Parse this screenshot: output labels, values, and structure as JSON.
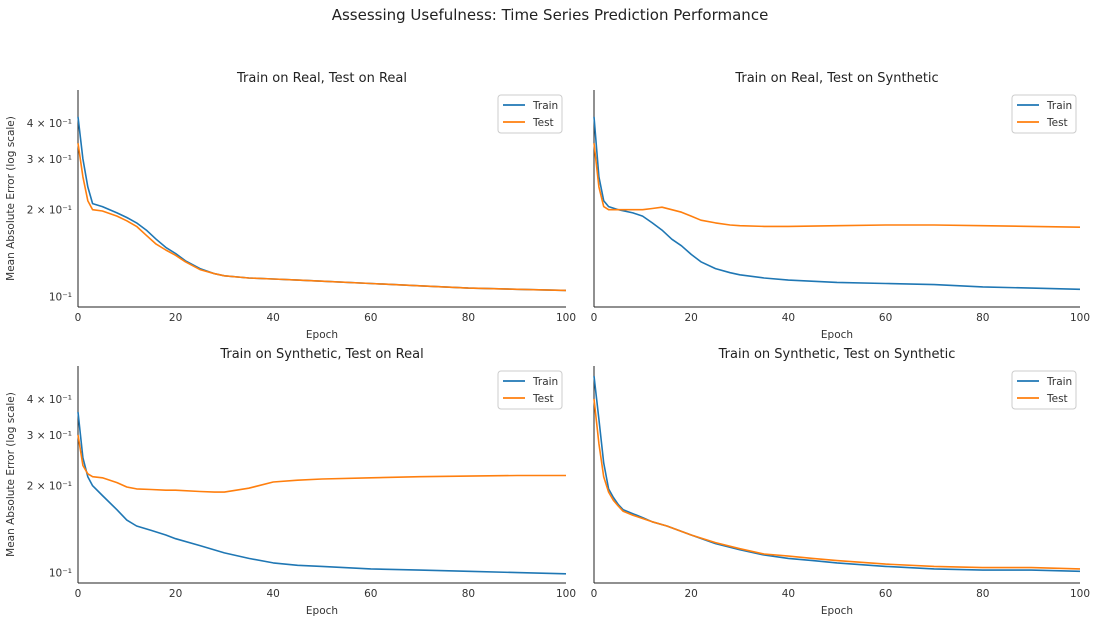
{
  "figure_title": "Assessing Usefulness: Time Series Prediction Performance",
  "colors": {
    "train": "#1f77b4",
    "test": "#ff7f0e"
  },
  "chart_data": [
    {
      "type": "line",
      "title": "Train on Real, Test on Real",
      "xlabel": "Epoch",
      "ylabel": "Mean Absolute Error (log scale)",
      "yscale": "log",
      "xlim": [
        0,
        100
      ],
      "ylim": [
        0.092,
        0.52
      ],
      "xticks": [
        0,
        20,
        40,
        60,
        80,
        100
      ],
      "yticks": [
        {
          "value": 0.4,
          "label": "4 × 10⁻¹"
        },
        {
          "value": 0.3,
          "label": "3 × 10⁻¹"
        },
        {
          "value": 0.2,
          "label": "2 × 10⁻¹"
        },
        {
          "value": 0.1,
          "label": "10⁻¹"
        }
      ],
      "legend": "top-right",
      "series": [
        {
          "name": "Train",
          "x": [
            0,
            1,
            2,
            3,
            5,
            8,
            10,
            12,
            14,
            16,
            18,
            20,
            22,
            25,
            28,
            30,
            35,
            40,
            45,
            50,
            60,
            70,
            80,
            90,
            100
          ],
          "y": [
            0.42,
            0.3,
            0.24,
            0.21,
            0.205,
            0.195,
            0.188,
            0.18,
            0.17,
            0.158,
            0.148,
            0.141,
            0.133,
            0.125,
            0.12,
            0.118,
            0.116,
            0.115,
            0.114,
            0.113,
            0.111,
            0.109,
            0.107,
            0.106,
            0.105
          ]
        },
        {
          "name": "Test",
          "x": [
            0,
            1,
            2,
            3,
            5,
            8,
            10,
            12,
            14,
            16,
            18,
            20,
            22,
            25,
            28,
            30,
            35,
            40,
            45,
            50,
            60,
            70,
            80,
            90,
            100
          ],
          "y": [
            0.34,
            0.26,
            0.215,
            0.2,
            0.198,
            0.19,
            0.183,
            0.175,
            0.163,
            0.152,
            0.145,
            0.139,
            0.132,
            0.124,
            0.12,
            0.118,
            0.116,
            0.115,
            0.114,
            0.113,
            0.111,
            0.109,
            0.107,
            0.106,
            0.105
          ]
        }
      ]
    },
    {
      "type": "line",
      "title": "Train on Real, Test on Synthetic",
      "xlabel": "Epoch",
      "ylabel": "",
      "yscale": "log",
      "xlim": [
        0,
        100
      ],
      "ylim": [
        0.092,
        0.52
      ],
      "xticks": [
        0,
        20,
        40,
        60,
        80,
        100
      ],
      "yticks": [],
      "legend": "top-right",
      "series": [
        {
          "name": "Train",
          "x": [
            0,
            1,
            2,
            3,
            5,
            8,
            10,
            12,
            14,
            16,
            18,
            20,
            22,
            25,
            28,
            30,
            35,
            40,
            50,
            60,
            70,
            80,
            90,
            100
          ],
          "y": [
            0.42,
            0.26,
            0.215,
            0.205,
            0.2,
            0.195,
            0.19,
            0.18,
            0.17,
            0.158,
            0.15,
            0.14,
            0.132,
            0.125,
            0.121,
            0.119,
            0.116,
            0.114,
            0.112,
            0.111,
            0.11,
            0.108,
            0.107,
            0.106
          ]
        },
        {
          "name": "Test",
          "x": [
            0,
            1,
            2,
            3,
            5,
            8,
            10,
            12,
            14,
            16,
            18,
            20,
            22,
            25,
            28,
            30,
            35,
            40,
            50,
            60,
            70,
            80,
            90,
            100
          ],
          "y": [
            0.34,
            0.24,
            0.205,
            0.2,
            0.2,
            0.2,
            0.2,
            0.202,
            0.204,
            0.2,
            0.196,
            0.19,
            0.184,
            0.18,
            0.177,
            0.176,
            0.175,
            0.175,
            0.176,
            0.177,
            0.177,
            0.176,
            0.175,
            0.174
          ]
        }
      ]
    },
    {
      "type": "line",
      "title": "Train on Synthetic, Test on Real",
      "xlabel": "Epoch",
      "ylabel": "Mean Absolute Error (log scale)",
      "yscale": "log",
      "xlim": [
        0,
        100
      ],
      "ylim": [
        0.092,
        0.52
      ],
      "xticks": [
        0,
        20,
        40,
        60,
        80,
        100
      ],
      "yticks": [
        {
          "value": 0.4,
          "label": "4 × 10⁻¹"
        },
        {
          "value": 0.3,
          "label": "3 × 10⁻¹"
        },
        {
          "value": 0.2,
          "label": "2 × 10⁻¹"
        },
        {
          "value": 0.1,
          "label": "10⁻¹"
        }
      ],
      "legend": "top-right",
      "series": [
        {
          "name": "Train",
          "x": [
            0,
            1,
            2,
            3,
            5,
            8,
            10,
            12,
            15,
            18,
            20,
            25,
            30,
            35,
            40,
            45,
            50,
            60,
            70,
            80,
            90,
            100
          ],
          "y": [
            0.36,
            0.25,
            0.215,
            0.2,
            0.185,
            0.165,
            0.152,
            0.145,
            0.14,
            0.135,
            0.131,
            0.124,
            0.117,
            0.112,
            0.108,
            0.106,
            0.105,
            0.103,
            0.102,
            0.101,
            0.1,
            0.099
          ]
        },
        {
          "name": "Test",
          "x": [
            0,
            1,
            2,
            3,
            5,
            8,
            10,
            12,
            15,
            18,
            20,
            25,
            28,
            30,
            35,
            40,
            45,
            50,
            60,
            70,
            80,
            90,
            100
          ],
          "y": [
            0.3,
            0.235,
            0.22,
            0.215,
            0.213,
            0.205,
            0.198,
            0.195,
            0.194,
            0.193,
            0.193,
            0.191,
            0.19,
            0.19,
            0.196,
            0.206,
            0.209,
            0.211,
            0.213,
            0.215,
            0.216,
            0.217,
            0.217
          ]
        }
      ]
    },
    {
      "type": "line",
      "title": "Train on Synthetic, Test on Synthetic",
      "xlabel": "Epoch",
      "ylabel": "",
      "yscale": "log",
      "xlim": [
        0,
        100
      ],
      "ylim": [
        0.092,
        0.52
      ],
      "xticks": [
        0,
        20,
        40,
        60,
        80,
        100
      ],
      "yticks": [],
      "legend": "top-right",
      "series": [
        {
          "name": "Train",
          "x": [
            0,
            1,
            2,
            3,
            4,
            5,
            6,
            8,
            10,
            12,
            15,
            20,
            25,
            30,
            35,
            40,
            45,
            50,
            60,
            70,
            80,
            90,
            100
          ],
          "y": [
            0.48,
            0.34,
            0.24,
            0.195,
            0.182,
            0.172,
            0.165,
            0.16,
            0.155,
            0.15,
            0.145,
            0.135,
            0.126,
            0.12,
            0.115,
            0.112,
            0.11,
            0.108,
            0.105,
            0.103,
            0.102,
            0.102,
            0.101
          ]
        },
        {
          "name": "Test",
          "x": [
            0,
            1,
            2,
            3,
            4,
            5,
            6,
            8,
            10,
            12,
            15,
            20,
            25,
            30,
            35,
            40,
            45,
            50,
            60,
            70,
            80,
            90,
            100
          ],
          "y": [
            0.4,
            0.28,
            0.215,
            0.19,
            0.178,
            0.17,
            0.163,
            0.158,
            0.154,
            0.15,
            0.145,
            0.135,
            0.127,
            0.121,
            0.116,
            0.114,
            0.112,
            0.11,
            0.107,
            0.105,
            0.104,
            0.104,
            0.103
          ]
        }
      ]
    }
  ]
}
